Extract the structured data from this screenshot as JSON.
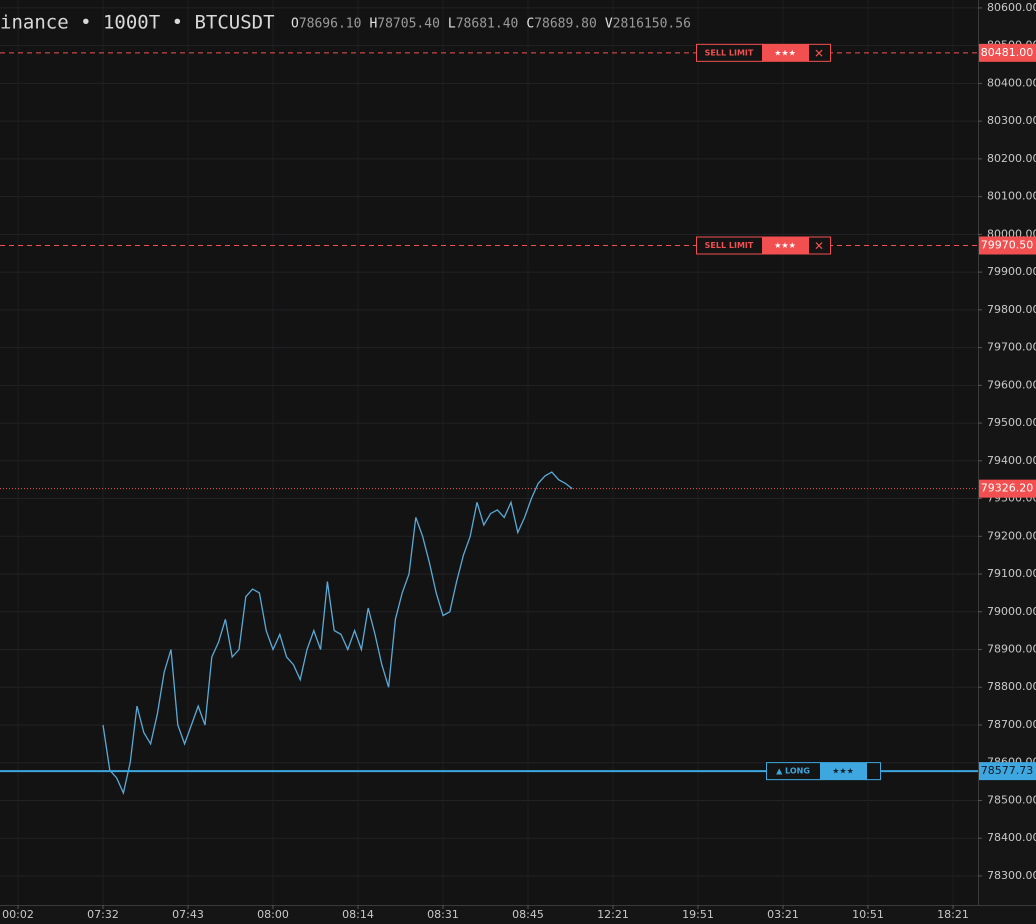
{
  "chart_data": {
    "type": "line",
    "title": "inance • 1000T • BTCUSDT",
    "ohlcv": [
      {
        "label": "O",
        "value": "78696.10"
      },
      {
        "label": "H",
        "value": "78705.40"
      },
      {
        "label": "L",
        "value": "78681.40"
      },
      {
        "label": "C",
        "value": "78689.80"
      },
      {
        "label": "V",
        "value": "2816150.56"
      }
    ],
    "x": [
      1,
      1.08,
      1.16,
      1.24,
      1.32,
      1.4,
      1.48,
      1.56,
      1.64,
      1.72,
      1.8,
      1.88,
      1.96,
      2.04,
      2.12,
      2.2,
      2.28,
      2.36,
      2.44,
      2.52,
      2.6,
      2.68,
      2.76,
      2.84,
      2.92,
      3,
      3.08,
      3.16,
      3.24,
      3.32,
      3.4,
      3.48,
      3.56,
      3.64,
      3.72,
      3.8,
      3.88,
      3.96,
      4.04,
      4.12,
      4.2,
      4.28,
      4.36,
      4.44,
      4.52,
      4.6,
      4.68,
      4.76,
      4.84,
      4.92,
      5,
      5.08,
      5.16,
      5.24,
      5.32,
      5.4,
      5.48,
      5.56,
      5.64,
      5.72,
      5.8,
      5.88,
      5.96,
      6.04,
      6.12,
      6.2,
      6.28,
      6.36,
      6.44,
      6.52
    ],
    "values": [
      78700,
      78580,
      78560,
      78520,
      78600,
      78750,
      78680,
      78650,
      78730,
      78840,
      78900,
      78700,
      78650,
      78700,
      78750,
      78700,
      78880,
      78920,
      78980,
      78880,
      78900,
      79040,
      79060,
      79050,
      78950,
      78900,
      78940,
      78880,
      78860,
      78820,
      78900,
      78950,
      78900,
      79080,
      78950,
      78940,
      78900,
      78950,
      78900,
      79010,
      78940,
      78860,
      78800,
      78980,
      79050,
      79100,
      79250,
      79200,
      79130,
      79050,
      78990,
      79000,
      79080,
      79150,
      79200,
      79290,
      79230,
      79260,
      79270,
      79250,
      79290,
      79210,
      79250,
      79300,
      79340,
      79360,
      79370,
      79350,
      79340,
      79326.2
    ],
    "color": "#5aa9d6",
    "xlim": [
      -0.212,
      11.294
    ],
    "xticks": [
      {
        "value": 0,
        "label": "00:02"
      },
      {
        "value": 1,
        "label": "07:32"
      },
      {
        "value": 2,
        "label": "07:43"
      },
      {
        "value": 3,
        "label": "08:00"
      },
      {
        "value": 4,
        "label": "08:14"
      },
      {
        "value": 5,
        "label": "08:31"
      },
      {
        "value": 6,
        "label": "08:45"
      },
      {
        "value": 7,
        "label": "12:21"
      },
      {
        "value": 8,
        "label": "19:51"
      },
      {
        "value": 9,
        "label": "03:21"
      },
      {
        "value": 10,
        "label": "10:51"
      },
      {
        "value": 11,
        "label": "18:21"
      }
    ],
    "ylim": [
      78223,
      80621
    ],
    "yticks": [
      {
        "value": 78300,
        "label": "78300.00"
      },
      {
        "value": 78400,
        "label": "78400.00"
      },
      {
        "value": 78500,
        "label": "78500.00"
      },
      {
        "value": 78600,
        "label": "78600.00"
      },
      {
        "value": 78700,
        "label": "78700.00"
      },
      {
        "value": 78800,
        "label": "78800.00"
      },
      {
        "value": 78900,
        "label": "78900.00"
      },
      {
        "value": 79000,
        "label": "79000.00"
      },
      {
        "value": 79100,
        "label": "79100.00"
      },
      {
        "value": 79200,
        "label": "79200.00"
      },
      {
        "value": 79300,
        "label": "79300.00"
      },
      {
        "value": 79400,
        "label": "79400.00"
      },
      {
        "value": 79500,
        "label": "79500.00"
      },
      {
        "value": 79600,
        "label": "79600.00"
      },
      {
        "value": 79700,
        "label": "79700.00"
      },
      {
        "value": 79800,
        "label": "79800.00"
      },
      {
        "value": 79900,
        "label": "79900.00"
      },
      {
        "value": 80000,
        "label": "80000.00"
      },
      {
        "value": 80100,
        "label": "80100.00"
      },
      {
        "value": 80200,
        "label": "80200.00"
      },
      {
        "value": 80300,
        "label": "80300.00"
      },
      {
        "value": 80400,
        "label": "80400.00"
      },
      {
        "value": 80500,
        "label": "80500.00"
      },
      {
        "value": 80600,
        "label": "80600.00"
      }
    ],
    "grid": true,
    "current_price": {
      "value": 79326.2,
      "label": "79326.20",
      "color": "#f25050"
    },
    "orders": [
      {
        "kind": "SELL LIMIT",
        "price": 80481,
        "price_label": "80481.00",
        "stars": "★★★",
        "close": "✕",
        "color": "#f25050"
      },
      {
        "kind": "SELL LIMIT",
        "price": 79970.5,
        "price_label": "79970.50",
        "stars": "★★★",
        "close": "✕",
        "color": "#f25050"
      },
      {
        "kind": "▲ LONG",
        "price": 78577.73,
        "price_label": "78577.73",
        "stars": "★★★",
        "color": "#3fa7e0"
      }
    ]
  }
}
